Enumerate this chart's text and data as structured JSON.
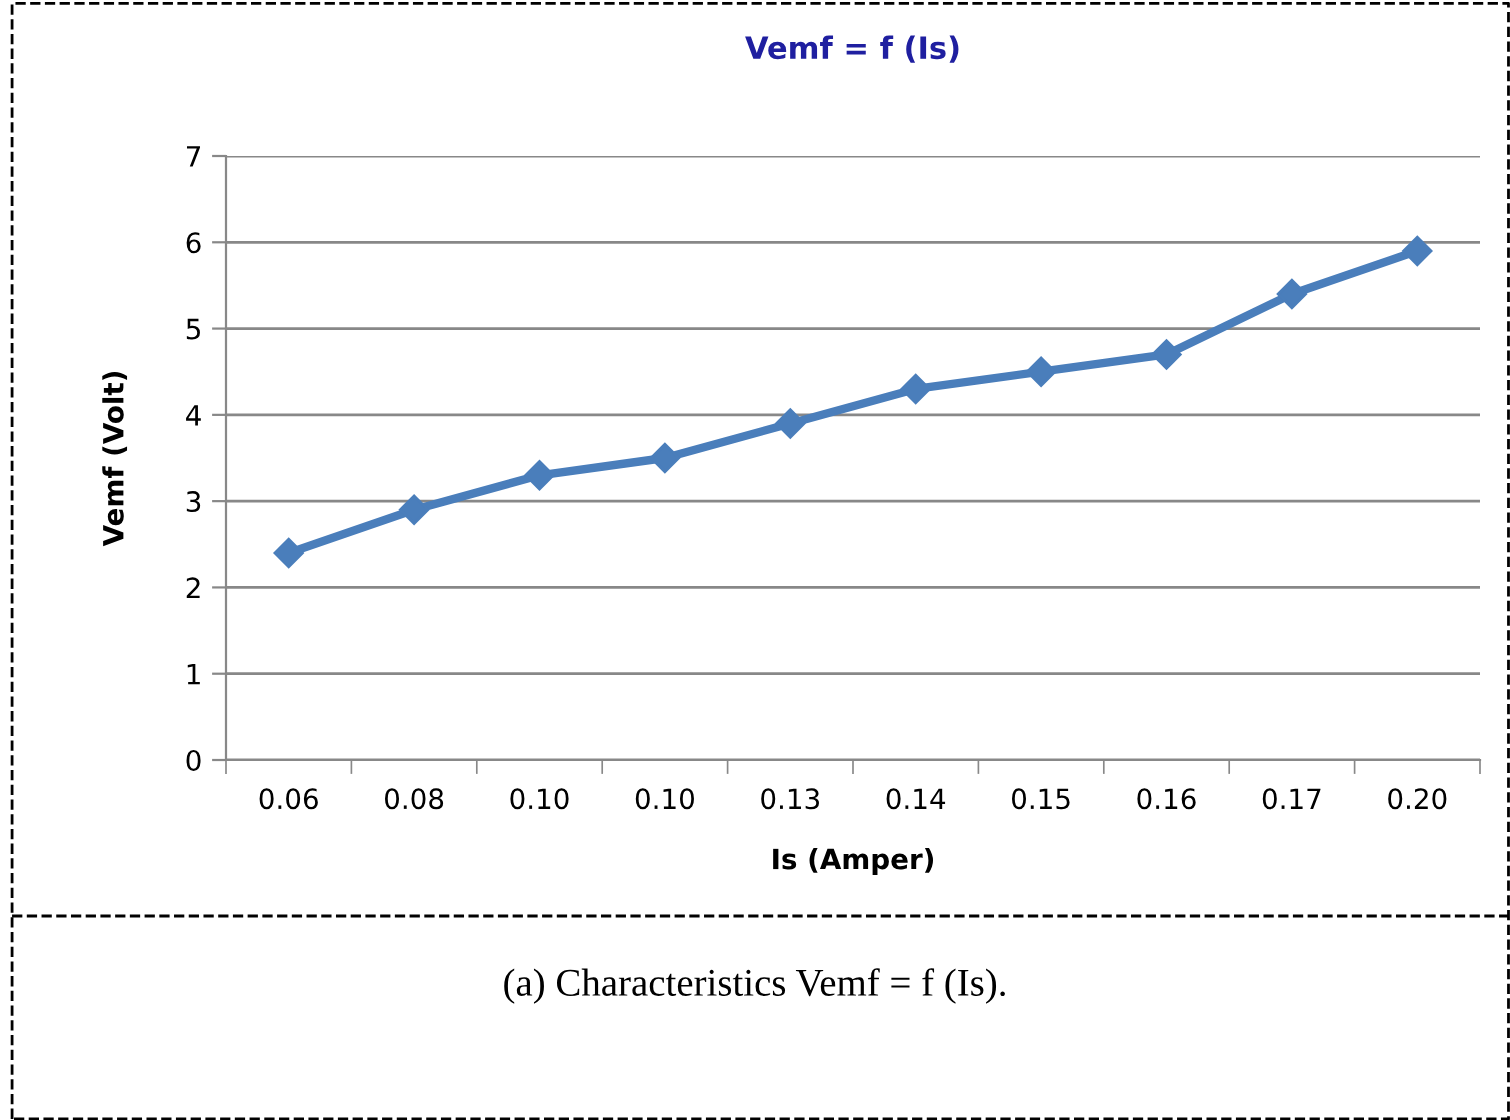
{
  "chart_data": {
    "type": "line",
    "title": "Vemf = f (Is)",
    "xlabel": "Is (Amper)",
    "ylabel": "Vemf (Volt)",
    "categories": [
      "0.06",
      "0.08",
      "0.10",
      "0.10",
      "0.13",
      "0.14",
      "0.15",
      "0.16",
      "0.17",
      "0.20"
    ],
    "series": [
      {
        "color": "#4a7ebb",
        "values": [
          2.4,
          2.9,
          3.3,
          3.5,
          3.9,
          4.3,
          4.5,
          4.7,
          5.4,
          5.9
        ]
      }
    ],
    "ylim": [
      0,
      7
    ],
    "yticks": [
      0,
      1,
      2,
      3,
      4,
      5,
      6,
      7
    ],
    "grid": "y",
    "marker": "diamond",
    "line_style": "solid",
    "legend": false,
    "annotations": [
      "(a) Characteristics Vemf = f (Is)."
    ]
  }
}
